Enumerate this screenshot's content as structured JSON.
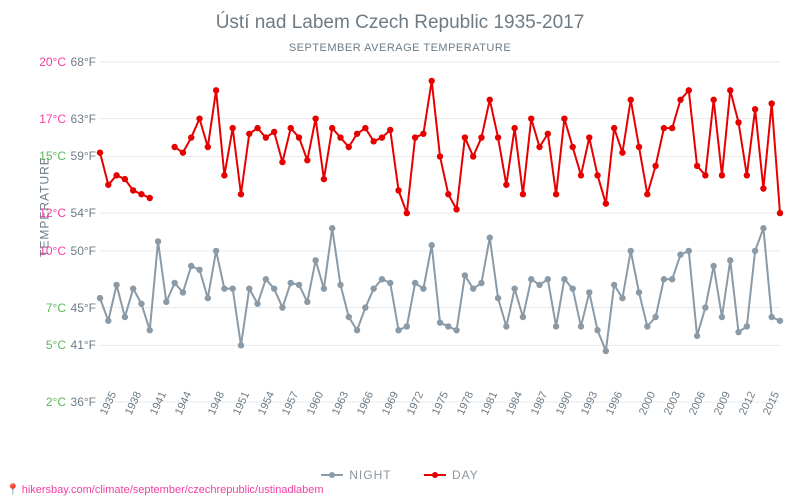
{
  "title": "Ústí nad Labem Czech Republic 1935-2017",
  "subtitle": "SEPTEMBER AVERAGE TEMPERATURE",
  "ylabel": "TEMPERATURE",
  "credit": "hikersbay.com/climate/september/czechrepublic/ustinadlabem",
  "colors": {
    "night": "#8a9aa6",
    "day": "#e60000",
    "grid": "#e7eaec",
    "title": "#6e7b85",
    "axis_text": "#6e7b85",
    "tick_c_warm": "#f43ea2",
    "tick_c_cool": "#5cb85c",
    "background": "#ffffff"
  },
  "chart": {
    "type": "line",
    "y_min": 2,
    "y_max": 20,
    "y_ticks_c": [
      2,
      5,
      7,
      10,
      12,
      15,
      17,
      20
    ],
    "y_ticks_f": [
      36,
      41,
      45,
      50,
      54,
      59,
      63,
      68
    ],
    "y_tick_cool": [
      2,
      5,
      7,
      15
    ],
    "x_years": [
      1935,
      1936,
      1937,
      1938,
      1939,
      1940,
      1941,
      1942,
      1943,
      1944,
      1945,
      1946,
      1947,
      1948,
      1949,
      1950,
      1951,
      1952,
      1953,
      1954,
      1955,
      1956,
      1957,
      1958,
      1959,
      1960,
      1961,
      1962,
      1963,
      1964,
      1965,
      1966,
      1967,
      1968,
      1969,
      1970,
      1971,
      1972,
      1973,
      1974,
      1975,
      1976,
      1977,
      1978,
      1979,
      1980,
      1981,
      1982,
      1983,
      1984,
      1985,
      1986,
      1987,
      1988,
      1989,
      1990,
      1991,
      1992,
      1993,
      1994,
      1995,
      1996,
      1997,
      1998,
      1999,
      2000,
      2001,
      2002,
      2003,
      2004,
      2005,
      2006,
      2007,
      2008,
      2009,
      2010,
      2011,
      2012,
      2013,
      2014,
      2015,
      2016,
      2017
    ],
    "x_tick_years": [
      1935,
      1938,
      1941,
      1944,
      1948,
      1951,
      1954,
      1957,
      1960,
      1963,
      1966,
      1969,
      1972,
      1975,
      1978,
      1981,
      1984,
      1987,
      1990,
      1993,
      1996,
      2000,
      2003,
      2006,
      2009,
      2012,
      2015
    ],
    "day": [
      15.2,
      13.5,
      14.0,
      13.8,
      13.2,
      13.0,
      12.8,
      null,
      null,
      15.5,
      15.2,
      16.0,
      17.0,
      15.5,
      18.5,
      14.0,
      16.5,
      13.0,
      16.2,
      16.5,
      16.0,
      16.3,
      14.7,
      16.5,
      16.0,
      14.8,
      17.0,
      13.8,
      16.5,
      16.0,
      15.5,
      16.2,
      16.5,
      15.8,
      16.0,
      16.4,
      13.2,
      12.0,
      16.0,
      16.2,
      19.0,
      15.0,
      13.0,
      12.2,
      16.0,
      15.0,
      16.0,
      18.0,
      16.0,
      13.5,
      16.5,
      13.0,
      17.0,
      15.5,
      16.2,
      13.0,
      17.0,
      15.5,
      14.0,
      16.0,
      14.0,
      12.5,
      16.5,
      15.2,
      18.0,
      15.5,
      13.0,
      14.5,
      16.5,
      16.5,
      18.0,
      18.5,
      14.5,
      14.0,
      18.0,
      14.0,
      18.5,
      16.8,
      14.0,
      17.5,
      13.3,
      17.8,
      12.0
    ],
    "night": [
      7.5,
      6.3,
      8.2,
      6.5,
      8.0,
      7.2,
      5.8,
      10.5,
      7.3,
      8.3,
      7.8,
      9.2,
      9.0,
      7.5,
      10.0,
      8.0,
      8.0,
      5.0,
      8.0,
      7.2,
      8.5,
      8.0,
      7.0,
      8.3,
      8.2,
      7.3,
      9.5,
      8.0,
      11.2,
      8.2,
      6.5,
      5.8,
      7.0,
      8.0,
      8.5,
      8.3,
      5.8,
      6.0,
      8.3,
      8.0,
      10.3,
      6.2,
      6.0,
      5.8,
      8.7,
      8.0,
      8.3,
      10.7,
      7.5,
      6.0,
      8.0,
      6.5,
      8.5,
      8.2,
      8.5,
      6.0,
      8.5,
      8.0,
      6.0,
      7.8,
      5.8,
      4.7,
      8.2,
      7.5,
      10.0,
      7.8,
      6.0,
      6.5,
      8.5,
      8.5,
      9.8,
      10.0,
      5.5,
      7.0,
      9.2,
      6.5,
      9.5,
      5.7,
      6.0,
      10.0,
      11.2,
      6.5,
      6.3
    ],
    "title_fontsize": 19,
    "subtitle_fontsize": 11,
    "tick_fontsize": 12,
    "xtick_fontsize": 11,
    "line_width": 2,
    "marker_size": 3.2
  },
  "legend": {
    "night": "NIGHT",
    "day": "DAY"
  }
}
